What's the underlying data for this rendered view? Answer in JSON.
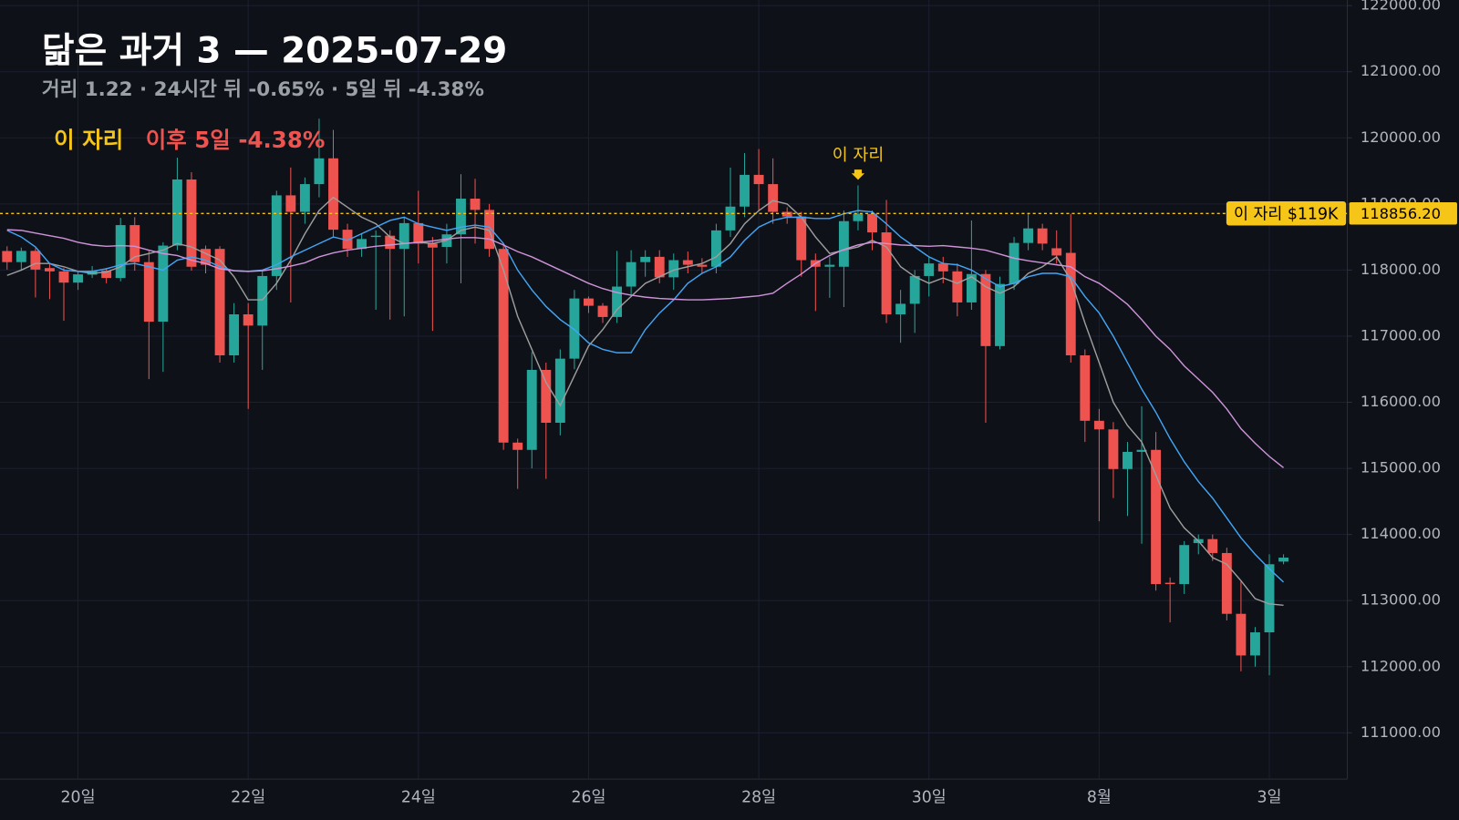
{
  "chart_data": {
    "type": "candlestick",
    "title": "닮은 과거 3 — 2025-07-29",
    "subtitle": "거리 1.22 · 24시간 뒤 -0.65% · 5일 뒤 -4.38%",
    "legend": [
      {
        "text": "이 자리",
        "color": "#f5c518"
      },
      {
        "text": "이후 5일 -4.38%",
        "color": "#ef5350"
      }
    ],
    "categories": [
      null,
      null,
      null,
      null,
      null,
      "20일",
      null,
      null,
      null,
      null,
      null,
      null,
      null,
      null,
      null,
      null,
      null,
      "22일",
      null,
      null,
      null,
      null,
      null,
      null,
      null,
      null,
      null,
      null,
      null,
      "24일",
      null,
      null,
      null,
      null,
      null,
      null,
      null,
      null,
      null,
      null,
      null,
      "26일",
      null,
      null,
      null,
      null,
      null,
      null,
      null,
      null,
      null,
      null,
      null,
      "28일",
      null,
      null,
      null,
      null,
      null,
      null,
      null,
      null,
      null,
      null,
      null,
      "30일",
      null,
      null,
      null,
      null,
      null,
      null,
      null,
      null,
      null,
      null,
      null,
      "8월",
      null,
      null,
      null,
      null,
      null,
      null,
      null,
      null,
      null,
      null,
      null,
      "3일",
      null
    ],
    "open": [
      118288,
      118120,
      118290,
      118030,
      117980,
      117810,
      117930,
      117990,
      117880,
      118680,
      118120,
      117220,
      118370,
      119370,
      118320,
      118320,
      116710,
      117330,
      117160,
      117910,
      119130,
      118880,
      119300,
      119690,
      118610,
      118320,
      118500,
      118520,
      118320,
      118710,
      118400,
      118350,
      118540,
      119080,
      118910,
      118320,
      115390,
      115280,
      116490,
      115690,
      116660,
      117570,
      117460,
      117290,
      117750,
      118120,
      118200,
      117890,
      118150,
      118080,
      118050,
      118600,
      118960,
      119440,
      119300,
      118880,
      118810,
      118150,
      118050,
      118050,
      118740,
      118850,
      118570,
      117330,
      117490,
      117910,
      118100,
      117980,
      117510,
      117940,
      116850,
      117790,
      118410,
      118630,
      118330,
      118260,
      116710,
      115720,
      115590,
      114990,
      115250,
      115280,
      113270,
      113250,
      113870,
      113930,
      113720,
      112800,
      112170,
      112520,
      113590
    ],
    "high": [
      118360,
      118340,
      118330,
      118100,
      118030,
      117990,
      118060,
      118030,
      118790,
      118800,
      118290,
      118420,
      119700,
      119480,
      118370,
      118360,
      117500,
      117500,
      118000,
      119200,
      119550,
      119400,
      120290,
      120120,
      118700,
      118550,
      118600,
      118600,
      118800,
      119200,
      118500,
      118700,
      119450,
      119380,
      119000,
      118400,
      115450,
      116760,
      116600,
      116800,
      117700,
      117600,
      117500,
      118290,
      118300,
      118300,
      118300,
      118250,
      118280,
      118180,
      118700,
      119550,
      119770,
      119830,
      119690,
      118950,
      118880,
      118250,
      118200,
      118900,
      119280,
      118900,
      119060,
      117700,
      118000,
      118200,
      118200,
      118100,
      118750,
      118000,
      117900,
      118500,
      118850,
      118700,
      118600,
      118850,
      116800,
      115900,
      115700,
      115400,
      115940,
      115550,
      113350,
      113900,
      114000,
      114000,
      113800,
      113300,
      112600,
      113700,
      113700
    ],
    "low": [
      118007,
      117990,
      117585,
      117560,
      117233,
      117700,
      117880,
      117800,
      117830,
      117990,
      116350,
      116460,
      118300,
      117990,
      117950,
      116600,
      116600,
      115900,
      116490,
      117700,
      117510,
      118700,
      119100,
      118500,
      118200,
      118200,
      117400,
      117250,
      117300,
      118100,
      117080,
      118100,
      117800,
      118400,
      118200,
      115280,
      114690,
      115000,
      114840,
      115500,
      116500,
      117350,
      117200,
      117200,
      117600,
      117900,
      117800,
      117700,
      117950,
      117950,
      117950,
      118500,
      118800,
      118900,
      118700,
      118700,
      117900,
      117380,
      117580,
      117440,
      118600,
      118300,
      117200,
      116900,
      117050,
      117600,
      117800,
      117300,
      117400,
      115690,
      116800,
      117700,
      118300,
      118300,
      118100,
      116600,
      115400,
      114200,
      114550,
      114280,
      113860,
      113150,
      112670,
      113100,
      113700,
      113600,
      112700,
      111930,
      112000,
      111870,
      113550
    ],
    "close": [
      118120,
      118290,
      118007,
      117980,
      117810,
      117935,
      117990,
      117880,
      118680,
      118120,
      117220,
      118370,
      119370,
      118050,
      118080,
      116710,
      117330,
      117160,
      117910,
      119130,
      118880,
      119300,
      119690,
      118610,
      118320,
      118470,
      118520,
      118320,
      118710,
      118400,
      118340,
      118540,
      119080,
      118910,
      118320,
      115390,
      115280,
      116490,
      115690,
      116660,
      117570,
      117460,
      117290,
      117750,
      118120,
      118200,
      117890,
      118150,
      118080,
      118050,
      118600,
      118960,
      119440,
      119300,
      118880,
      118810,
      118150,
      118050,
      118080,
      118740,
      118850,
      118570,
      117330,
      117490,
      117910,
      118100,
      117980,
      117510,
      117940,
      116850,
      117790,
      118410,
      118630,
      118400,
      118220,
      116710,
      115720,
      115590,
      114990,
      115250,
      115280,
      113250,
      113250,
      113840,
      113930,
      113720,
      112800,
      112170,
      112520,
      113550,
      113650
    ],
    "up_color": "#26a69a",
    "down_color": "#ef5350",
    "lines": [
      {
        "color": "#9e9e9e",
        "values": [
          117920,
          118000,
          118100,
          118100,
          118050,
          117980,
          117950,
          117970,
          118050,
          118200,
          118250,
          118300,
          118400,
          118350,
          118250,
          118150,
          117900,
          117550,
          117550,
          117800,
          118150,
          118550,
          118900,
          119100,
          118950,
          118800,
          118700,
          118500,
          118400,
          118420,
          118400,
          118450,
          118600,
          118650,
          118600,
          118000,
          117300,
          116800,
          116300,
          115950,
          116400,
          116850,
          117100,
          117400,
          117600,
          117800,
          117900,
          118000,
          118050,
          118100,
          118200,
          118400,
          118700,
          118900,
          119050,
          119000,
          118800,
          118500,
          118250,
          118300,
          118350,
          118450,
          118350,
          118050,
          117900,
          117800,
          117880,
          117800,
          117900,
          117750,
          117650,
          117750,
          117950,
          118050,
          118200,
          117850,
          117200,
          116600,
          116000,
          115650,
          115400,
          114900,
          114400,
          114100,
          113900,
          113650,
          113550,
          113300,
          113030,
          112950,
          112930
        ]
      },
      {
        "color": "#42a5f5",
        "values": [
          118600,
          118500,
          118350,
          118100,
          118000,
          117980,
          117980,
          118020,
          118080,
          118100,
          118050,
          118000,
          118150,
          118200,
          118150,
          118050,
          117990,
          117980,
          118000,
          118080,
          118200,
          118300,
          118400,
          118500,
          118450,
          118550,
          118650,
          118750,
          118800,
          118700,
          118650,
          118600,
          118650,
          118680,
          118650,
          118400,
          118000,
          117700,
          117450,
          117250,
          117100,
          116900,
          116800,
          116750,
          116750,
          117100,
          117350,
          117550,
          117800,
          117950,
          118050,
          118200,
          118450,
          118650,
          118750,
          118800,
          118800,
          118780,
          118780,
          118850,
          118900,
          118880,
          118700,
          118500,
          118350,
          118200,
          118100,
          118080,
          118000,
          117870,
          117750,
          117800,
          117900,
          117950,
          117950,
          117900,
          117600,
          117350,
          117000,
          116600,
          116200,
          115850,
          115450,
          115100,
          114800,
          114550,
          114250,
          113950,
          113700,
          113480,
          113280
        ]
      },
      {
        "color": "#ce93d8",
        "values": [
          118610,
          118600,
          118560,
          118520,
          118480,
          118420,
          118380,
          118360,
          118370,
          118360,
          118300,
          118250,
          118220,
          118150,
          118100,
          118020,
          117990,
          117980,
          117990,
          118020,
          118060,
          118110,
          118200,
          118260,
          118300,
          118330,
          118360,
          118380,
          118400,
          118420,
          118440,
          118470,
          118490,
          118490,
          118470,
          118380,
          118280,
          118200,
          118100,
          118000,
          117900,
          117800,
          117720,
          117660,
          117620,
          117590,
          117570,
          117560,
          117550,
          117550,
          117560,
          117570,
          117590,
          117610,
          117650,
          117800,
          117940,
          118100,
          118220,
          118310,
          118380,
          118420,
          118400,
          118380,
          118370,
          118360,
          118370,
          118350,
          118330,
          118300,
          118240,
          118180,
          118140,
          118110,
          118080,
          118050,
          117900,
          117800,
          117650,
          117480,
          117250,
          117000,
          116800,
          116550,
          116350,
          116150,
          115900,
          115600,
          115380,
          115180,
          115010
        ]
      }
    ],
    "ylim": [
      110300,
      122085
    ],
    "yticks": [
      {
        "value": 111000,
        "label": "111000.00"
      },
      {
        "value": 112000,
        "label": "112000.00"
      },
      {
        "value": 113000,
        "label": "113000.00"
      },
      {
        "value": 114000,
        "label": "114000.00"
      },
      {
        "value": 115000,
        "label": "115000.00"
      },
      {
        "value": 116000,
        "label": "116000.00"
      },
      {
        "value": 117000,
        "label": "117000.00"
      },
      {
        "value": 118000,
        "label": "118000.00"
      },
      {
        "value": 119000,
        "label": "119000.00"
      },
      {
        "value": 120000,
        "label": "120000.00"
      },
      {
        "value": 121000,
        "label": "121000.00"
      },
      {
        "value": 122000,
        "label": "122000.00"
      }
    ],
    "grid": true,
    "hline": {
      "value": 118856.2,
      "label": "118856.20",
      "badge": "이 자리 $119K",
      "color": "#f5c518"
    },
    "annotation": {
      "text": "이 자리",
      "category_index": 60,
      "color": "#f5c518"
    }
  }
}
